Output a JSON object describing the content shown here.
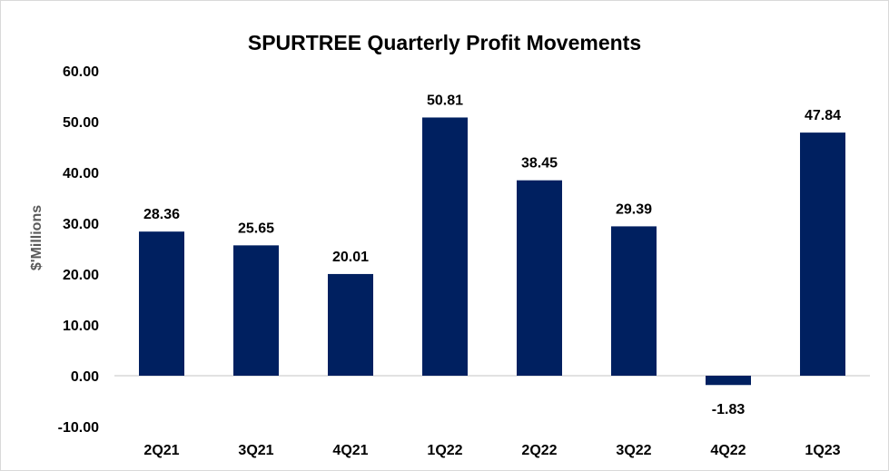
{
  "chart_data": {
    "type": "bar",
    "title": "SPURTREE Quarterly Profit Movements",
    "xlabel": "",
    "ylabel": "$'Millions",
    "categories": [
      "2Q21",
      "3Q21",
      "4Q21",
      "1Q22",
      "2Q22",
      "3Q22",
      "4Q22",
      "1Q23"
    ],
    "values": [
      28.36,
      25.65,
      20.01,
      50.81,
      38.45,
      29.39,
      -1.83,
      47.84
    ],
    "data_labels": [
      "28.36",
      "25.65",
      "20.01",
      "50.81",
      "38.45",
      "29.39",
      "-1.83",
      "47.84"
    ],
    "yticks": [
      "-10.00",
      "0.00",
      "10.00",
      "20.00",
      "30.00",
      "40.00",
      "50.00",
      "60.00"
    ],
    "ylim": [
      -10,
      60
    ],
    "grid": false,
    "legend": "none",
    "bar_color": "#002060"
  }
}
